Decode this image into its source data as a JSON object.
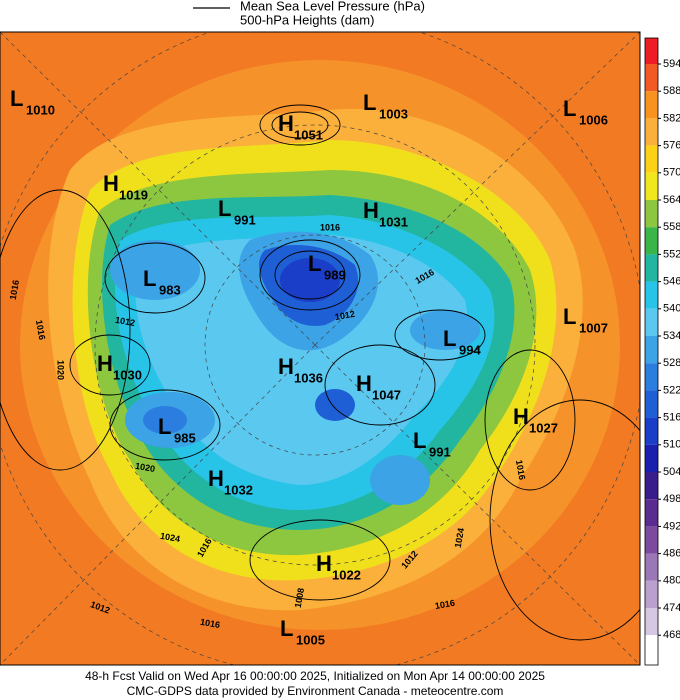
{
  "legend": {
    "items": [
      "Mean Sea Level Pressure (hPa)",
      "500-hPa Heights (dam)"
    ]
  },
  "centers": [
    {
      "letter": "L",
      "value": 1010
    },
    {
      "letter": "L",
      "value": 1003
    },
    {
      "letter": "L",
      "value": 1006
    },
    {
      "letter": "H",
      "value": 1051
    },
    {
      "letter": "H",
      "value": 1019
    },
    {
      "letter": "L",
      "value": 991
    },
    {
      "letter": "H",
      "value": 1031
    },
    {
      "letter": "L",
      "value": 989
    },
    {
      "letter": "L",
      "value": 983
    },
    {
      "letter": "L",
      "value": 1007
    },
    {
      "letter": "L",
      "value": 994
    },
    {
      "letter": "H",
      "value": 1030
    },
    {
      "letter": "H",
      "value": 1036
    },
    {
      "letter": "H",
      "value": 1047
    },
    {
      "letter": "H",
      "value": 1027
    },
    {
      "letter": "L",
      "value": 985
    },
    {
      "letter": "L",
      "value": 991
    },
    {
      "letter": "H",
      "value": 1032
    },
    {
      "letter": "H",
      "value": 1022
    },
    {
      "letter": "L",
      "value": 1005
    }
  ],
  "isobar_labels": [
    1016,
    1016,
    1012,
    1020,
    1016,
    1012,
    1020,
    1024,
    1016,
    1012,
    1016,
    1008,
    1012,
    1016,
    1016,
    1024,
    1016
  ],
  "colorbar": {
    "ticks": [
      594,
      588,
      582,
      576,
      570,
      564,
      558,
      552,
      546,
      540,
      534,
      528,
      522,
      516,
      510,
      504,
      498,
      492,
      486,
      480,
      474,
      468
    ],
    "colors": [
      "#ee1c25",
      "#f15a24",
      "#f7931e",
      "#fbb03b",
      "#fcd116",
      "#f0e81c",
      "#8dc63f",
      "#39b54a",
      "#22b5a0",
      "#27c4e8",
      "#5bc8f0",
      "#3ba3e6",
      "#2b7de0",
      "#1f5fd6",
      "#1a3ec8",
      "#1a1fae",
      "#3a1d8c",
      "#5b2c8f",
      "#7c4ba0",
      "#9b77b8",
      "#b9a0cf",
      "#d6c8e3",
      "#ffffff"
    ]
  },
  "footer": {
    "line1": "48-h Fcst Valid on Wed Apr 16 00:00:00 2025, Initialized on Mon Apr 14 00:00:00 2025",
    "line2": "CMC-GDPS data provided by Environment Canada - meteocentre.com"
  }
}
